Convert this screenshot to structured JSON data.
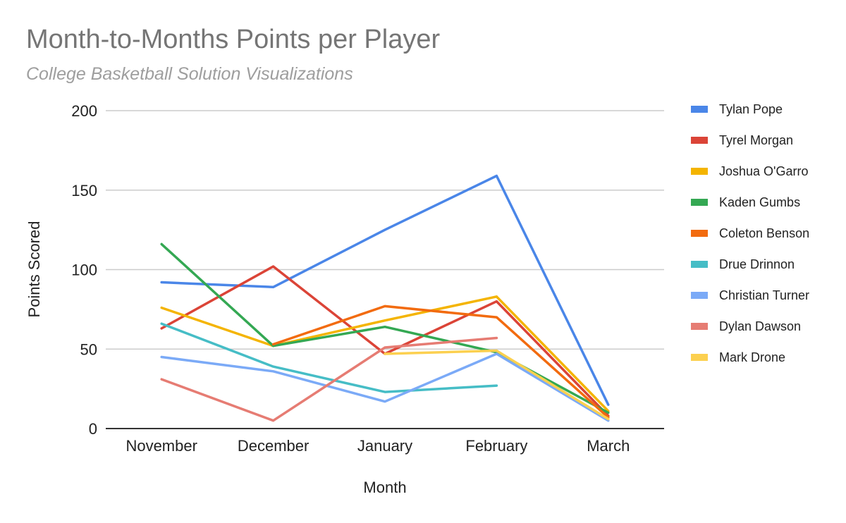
{
  "chart_data": {
    "type": "line",
    "title": "Month-to-Months Points per Player",
    "subtitle": "College Basketball Solution Visualizations",
    "xlabel": "Month",
    "ylabel": "Points Scored",
    "categories": [
      "November",
      "December",
      "January",
      "February",
      "March"
    ],
    "ylim": [
      0,
      200
    ],
    "yticks": [
      0,
      50,
      100,
      150,
      200
    ],
    "grid": true,
    "legend_position": "right",
    "series": [
      {
        "name": "Tylan Pope",
        "color": "#4a86e8",
        "values": [
          92,
          89,
          125,
          159,
          15
        ]
      },
      {
        "name": "Tyrel Morgan",
        "color": "#db4437",
        "values": [
          63,
          102,
          47,
          80,
          8
        ]
      },
      {
        "name": "Joshua O'Garro",
        "color": "#f4b400",
        "values": [
          76,
          52,
          68,
          83,
          11
        ]
      },
      {
        "name": "Kaden Gumbs",
        "color": "#34a853",
        "values": [
          116,
          52,
          64,
          48,
          10
        ]
      },
      {
        "name": "Coleton Benson",
        "color": "#f26b0f",
        "values": [
          null,
          53,
          77,
          70,
          7
        ]
      },
      {
        "name": "Drue Drinnon",
        "color": "#46bdc6",
        "values": [
          66,
          39,
          23,
          27,
          null
        ]
      },
      {
        "name": "Christian Turner",
        "color": "#7baaf7",
        "values": [
          45,
          36,
          17,
          47,
          5
        ]
      },
      {
        "name": "Dylan Dawson",
        "color": "#e67c73",
        "values": [
          31,
          5,
          51,
          57,
          null
        ]
      },
      {
        "name": "Mark Drone",
        "color": "#fcd04f",
        "values": [
          null,
          null,
          47,
          49,
          6
        ]
      }
    ]
  }
}
